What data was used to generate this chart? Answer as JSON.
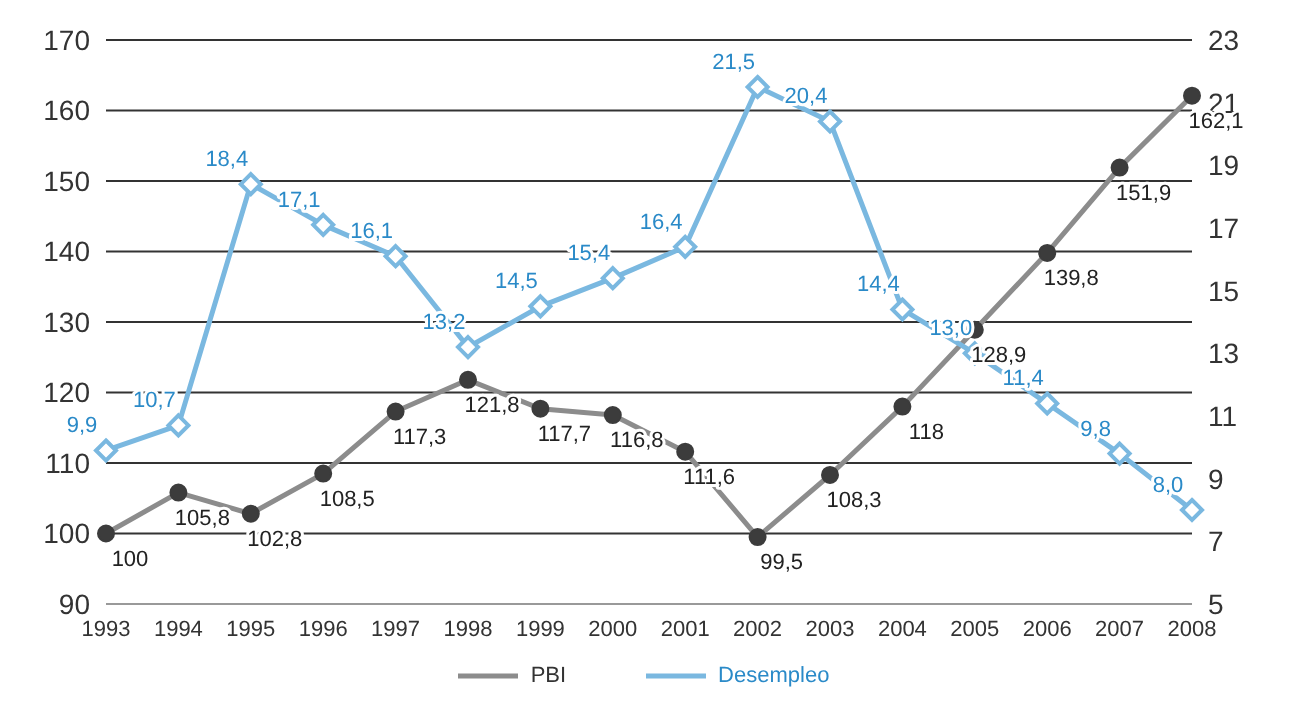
{
  "chart_data": {
    "type": "line",
    "categories": [
      "1993",
      "1994",
      "1995",
      "1996",
      "1997",
      "1998",
      "1999",
      "2000",
      "2001",
      "2002",
      "2003",
      "2004",
      "2005",
      "2006",
      "2007",
      "2008"
    ],
    "series": [
      {
        "name": "PBI",
        "color": "#8c8c8c",
        "values": [
          100,
          105.8,
          102.8,
          108.5,
          117.3,
          121.8,
          117.7,
          116.8,
          111.6,
          99.5,
          108.3,
          118,
          128.9,
          139.8,
          151.9,
          162.1
        ],
        "value_labels": [
          "100",
          "105,8",
          "102,8",
          "108,5",
          "117,3",
          "121,8",
          "117,7",
          "116,8",
          "111,6",
          "99,5",
          "108,3",
          "118",
          "128,9",
          "139,8",
          "151,9",
          "162,1"
        ]
      },
      {
        "name": "Desempleo",
        "color": "#7ab8e0",
        "axis": "y2",
        "marker": "diamond",
        "values": [
          9.9,
          10.7,
          18.4,
          17.1,
          16.1,
          13.2,
          14.5,
          15.4,
          16.4,
          21.5,
          20.4,
          14.4,
          13.0,
          11.4,
          9.8,
          8.0
        ],
        "value_labels": [
          "9,9",
          "10,7",
          "18,4",
          "17,1",
          "16,1",
          "13,2",
          "14,5",
          "15,4",
          "16,4",
          "21,5",
          "20,4",
          "14,4",
          "13,0",
          "11,4",
          "9,8",
          "8,0"
        ]
      }
    ],
    "marker": "circle",
    "ylim": [
      90,
      170
    ],
    "yticks": [
      90,
      100,
      110,
      120,
      130,
      140,
      150,
      160,
      170
    ],
    "y2lim": [
      5,
      23
    ],
    "y2ticks": [
      5,
      7,
      9,
      11,
      13,
      15,
      17,
      19,
      21,
      23
    ],
    "grid": "y",
    "legend": "bottom"
  }
}
